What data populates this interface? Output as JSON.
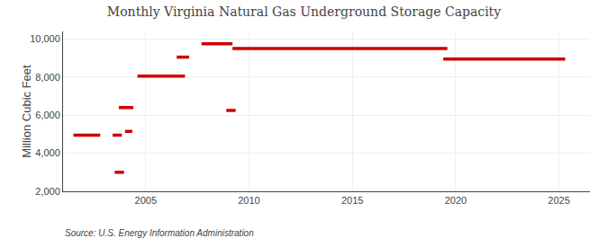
{
  "chart_data": {
    "type": "segments",
    "title": "Monthly Virginia Natural Gas Underground Storage Capacity",
    "ylabel": "Million Cubic Feet",
    "annotations": [
      "Source: U.S. Energy Information Administration"
    ],
    "color": "#cc0000",
    "grid": true,
    "xlim": [
      2001.0,
      2026.5
    ],
    "ylim": [
      2000,
      10400
    ],
    "xticks": [
      2005,
      2010,
      2015,
      2020,
      2025
    ],
    "yticks": [
      {
        "value": 2000,
        "label": "2,000"
      },
      {
        "value": 4000,
        "label": "4,000"
      },
      {
        "value": 6000,
        "label": "6,000"
      },
      {
        "value": 8000,
        "label": "8,000"
      },
      {
        "value": 10000,
        "label": "10,000"
      }
    ],
    "x_start": [
      2001.5,
      2003.4,
      2004.0,
      2003.5,
      2003.7,
      2004.6,
      2006.5,
      2007.7,
      2008.9,
      2009.2,
      2019.4
    ],
    "x_end": [
      2002.8,
      2003.85,
      2004.35,
      2003.95,
      2004.4,
      2006.9,
      2007.1,
      2009.2,
      2009.35,
      2019.6,
      2025.3
    ],
    "values": [
      4950,
      4950,
      5150,
      3000,
      6400,
      8050,
      9050,
      9750,
      6250,
      9500,
      8950
    ]
  }
}
